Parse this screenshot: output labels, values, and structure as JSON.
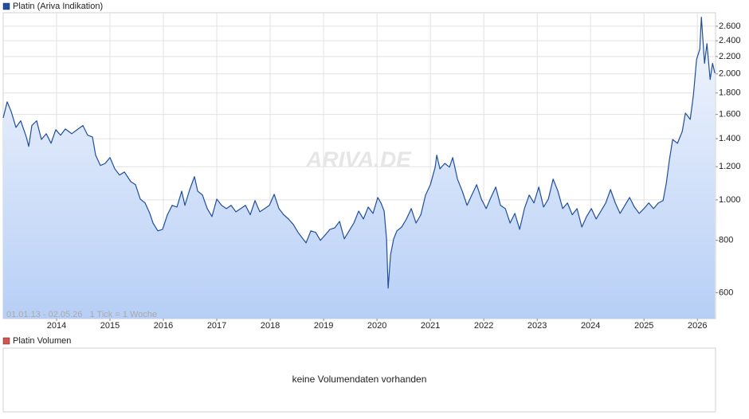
{
  "chart_data": {
    "type": "line",
    "log_scale": true,
    "grid": true,
    "watermark": "ARIVA.DE",
    "footnote": "01.01.13 - 02.05.26   1 Tick = 1 Woche",
    "xlim": [
      2013,
      2026.34
    ],
    "xticks": [
      2014,
      2015,
      2016,
      2017,
      2018,
      2019,
      2020,
      2021,
      2022,
      2023,
      2024,
      2025,
      2026
    ],
    "ylim": [
      520,
      2800
    ],
    "yticks": [
      {
        "value": 600,
        "label": "600"
      },
      {
        "value": 800,
        "label": "800"
      },
      {
        "value": 1000,
        "label": "1.000"
      },
      {
        "value": 1200,
        "label": "1.200"
      },
      {
        "value": 1400,
        "label": "1.400"
      },
      {
        "value": 1600,
        "label": "1.600"
      },
      {
        "value": 1800,
        "label": "1.800"
      },
      {
        "value": 2000,
        "label": "2.000"
      },
      {
        "value": 2200,
        "label": "2.200"
      },
      {
        "value": 2400,
        "label": "2.400"
      },
      {
        "value": 2600,
        "label": "2.600"
      }
    ],
    "x": [
      2013.0,
      2013.075,
      2013.149,
      2013.239,
      2013.328,
      2013.433,
      2013.478,
      2013.537,
      2013.627,
      2013.716,
      2013.806,
      2013.896,
      2013.985,
      2014.075,
      2014.164,
      2014.284,
      2014.403,
      2014.493,
      2014.582,
      2014.672,
      2014.731,
      2014.821,
      2014.91,
      2015.0,
      2015.09,
      2015.179,
      2015.269,
      2015.388,
      2015.478,
      2015.567,
      2015.657,
      2015.746,
      2015.806,
      2015.896,
      2015.985,
      2016.075,
      2016.164,
      2016.254,
      2016.343,
      2016.403,
      2016.493,
      2016.582,
      2016.642,
      2016.731,
      2016.821,
      2016.91,
      2017.0,
      2017.09,
      2017.179,
      2017.269,
      2017.358,
      2017.448,
      2017.537,
      2017.627,
      2017.716,
      2017.806,
      2017.896,
      2017.985,
      2018.075,
      2018.164,
      2018.254,
      2018.343,
      2018.433,
      2018.522,
      2018.612,
      2018.672,
      2018.761,
      2018.851,
      2018.94,
      2019.03,
      2019.119,
      2019.209,
      2019.299,
      2019.388,
      2019.478,
      2019.567,
      2019.657,
      2019.746,
      2019.836,
      2019.925,
      2020.015,
      2020.075,
      2020.134,
      2020.179,
      2020.209,
      2020.254,
      2020.313,
      2020.373,
      2020.463,
      2020.552,
      2020.642,
      2020.731,
      2020.821,
      2020.91,
      2021.0,
      2021.09,
      2021.119,
      2021.179,
      2021.269,
      2021.358,
      2021.418,
      2021.507,
      2021.597,
      2021.687,
      2021.776,
      2021.866,
      2021.955,
      2022.045,
      2022.134,
      2022.224,
      2022.313,
      2022.403,
      2022.493,
      2022.582,
      2022.672,
      2022.761,
      2022.851,
      2022.94,
      2023.03,
      2023.119,
      2023.209,
      2023.299,
      2023.388,
      2023.478,
      2023.567,
      2023.657,
      2023.746,
      2023.836,
      2023.925,
      2024.015,
      2024.104,
      2024.194,
      2024.284,
      2024.373,
      2024.463,
      2024.552,
      2024.642,
      2024.731,
      2024.821,
      2024.91,
      2025.0,
      2025.09,
      2025.179,
      2025.269,
      2025.358,
      2025.418,
      2025.478,
      2025.537,
      2025.627,
      2025.716,
      2025.776,
      2025.866,
      2025.925,
      2025.985,
      2026.045,
      2026.075,
      2026.134,
      2026.179,
      2026.239,
      2026.284,
      2026.328
    ],
    "series": [
      {
        "name": "Platin (Ariva Indikation)",
        "color": "#1f4e9c",
        "values": [
          1570,
          1715,
          1627,
          1490,
          1545,
          1413,
          1342,
          1505,
          1545,
          1394,
          1439,
          1365,
          1471,
          1427,
          1477,
          1439,
          1477,
          1505,
          1427,
          1413,
          1279,
          1208,
          1222,
          1262,
          1186,
          1146,
          1166,
          1106,
          1087,
          1004,
          983,
          928,
          880,
          843,
          850,
          921,
          970,
          961,
          1049,
          970,
          1058,
          1136,
          1049,
          1027,
          953,
          912,
          1004,
          970,
          953,
          970,
          936,
          953,
          970,
          921,
          996,
          936,
          953,
          970,
          1031,
          953,
          921,
          900,
          873,
          836,
          807,
          789,
          843,
          836,
          800,
          824,
          850,
          857,
          888,
          807,
          843,
          880,
          940,
          900,
          961,
          928,
          1013,
          983,
          940,
          807,
          615,
          739,
          807,
          843,
          861,
          900,
          953,
          880,
          921,
          1027,
          1087,
          1197,
          1279,
          1186,
          1222,
          1197,
          1262,
          1121,
          1049,
          970,
          1027,
          1087,
          1004,
          953,
          1013,
          1073,
          970,
          953,
          880,
          928,
          850,
          953,
          1027,
          983,
          1073,
          961,
          1004,
          1121,
          1049,
          953,
          983,
          921,
          953,
          861,
          912,
          953,
          900,
          940,
          983,
          1058,
          983,
          928,
          970,
          1013,
          961,
          928,
          953,
          983,
          953,
          983,
          996,
          1096,
          1251,
          1394,
          1365,
          1456,
          1612,
          1557,
          1776,
          2165,
          2291,
          2732,
          2119,
          2363,
          1939,
          2119,
          2008
        ]
      }
    ]
  },
  "volume_panel": {
    "legend": "Platin Volumen",
    "color": "#d9534f",
    "message": "keine Volumendaten vorhanden"
  }
}
